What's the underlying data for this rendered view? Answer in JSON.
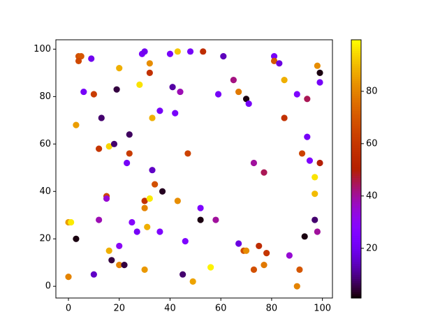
{
  "chart_data": {
    "type": "scatter",
    "x": [
      0,
      0,
      1,
      3,
      3,
      4,
      5,
      4,
      6,
      9,
      10,
      10,
      12,
      12,
      13,
      15,
      15,
      16,
      16,
      17,
      18,
      19,
      20,
      20,
      20,
      22,
      23,
      24,
      24,
      25,
      27,
      28,
      29,
      30,
      30,
      30,
      30,
      31,
      32,
      32,
      32,
      33,
      33,
      34,
      36,
      36,
      37,
      40,
      41,
      42,
      43,
      43,
      44,
      45,
      46,
      47,
      48,
      49,
      52,
      52,
      53,
      56,
      58,
      59,
      61,
      65,
      67,
      67,
      69,
      70,
      70,
      71,
      73,
      73,
      75,
      77,
      77,
      78,
      81,
      81,
      83,
      85,
      85,
      87,
      90,
      90,
      91,
      92,
      93,
      94,
      94,
      95,
      97,
      97,
      97,
      98,
      98,
      99,
      99,
      99
    ],
    "values": [
      4,
      27,
      27,
      20,
      68,
      97,
      97,
      95,
      82,
      96,
      81,
      5,
      58,
      28,
      71,
      38,
      37,
      59,
      15,
      11,
      60,
      83,
      92,
      17,
      9,
      9,
      52,
      64,
      56,
      27,
      23,
      85,
      98,
      99,
      36,
      33,
      7,
      25,
      94,
      90,
      37,
      71,
      49,
      43,
      74,
      23,
      40,
      98,
      84,
      73,
      99,
      36,
      82,
      5,
      19,
      56,
      99,
      2,
      28,
      33,
      99,
      8,
      28,
      81,
      97,
      87,
      82,
      18,
      15,
      15,
      79,
      77,
      52,
      7,
      17,
      48,
      9,
      14,
      97,
      95,
      94,
      87,
      71,
      13,
      81,
      0,
      7,
      56,
      21,
      79,
      63,
      53,
      46,
      39,
      28,
      93,
      23,
      90,
      86,
      52
    ],
    "color_values": [
      80,
      85,
      97,
      2,
      85,
      68,
      70,
      66,
      22,
      20,
      62,
      15,
      60,
      38,
      8,
      65,
      35,
      94,
      88,
      5,
      8,
      5,
      88,
      30,
      80,
      5,
      22,
      7,
      62,
      28,
      22,
      96,
      22,
      20,
      58,
      80,
      84,
      88,
      82,
      58,
      97,
      88,
      15,
      68,
      22,
      25,
      3,
      23,
      12,
      23,
      92,
      82,
      38,
      8,
      25,
      64,
      22,
      86,
      2,
      25,
      56,
      98,
      40,
      22,
      14,
      42,
      78,
      18,
      68,
      82,
      2,
      22,
      40,
      68,
      56,
      45,
      78,
      60,
      22,
      70,
      18,
      88,
      58,
      35,
      25,
      80,
      70,
      64,
      2,
      45,
      22,
      25,
      96,
      90,
      8,
      82,
      40,
      2,
      22,
      50
    ],
    "colormap": "gnuplot",
    "xlim": [
      -4.95,
      103.95
    ],
    "ylim": [
      -4.95,
      103.95
    ],
    "xticks": [
      0,
      20,
      40,
      60,
      80,
      100
    ],
    "yticks": [
      0,
      20,
      40,
      60,
      80,
      100
    ],
    "clim": [
      1,
      99.7
    ],
    "cticks": [
      20,
      40,
      60,
      80
    ]
  }
}
